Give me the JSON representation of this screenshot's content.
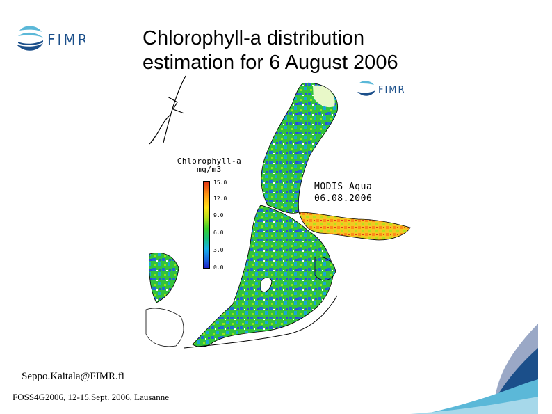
{
  "title": "Chlorophyll-a distribution\nestimation for  6 August 2006",
  "logo": {
    "text": "FIMR"
  },
  "map": {
    "logo_text": "FIMR",
    "legend": {
      "title": "Chlorophyll-a\nmg/m3",
      "ticks": [
        "15.0",
        "12.0",
        "9.0",
        "6.0",
        "3.0",
        "0.0"
      ],
      "colors": {
        "low": "#1f23c8",
        "mid": "#3ccf2a",
        "high": "#e23214",
        "land": "#ffffff",
        "coast": "#000000"
      }
    },
    "sensor": "MODIS Aqua\n06.08.2006"
  },
  "footer": {
    "email": "Seppo.Kaitala@FIMR.fi",
    "conference": "FOSS4G2006, 12-15.Sept. 2006, Lausanne"
  },
  "colors": {
    "brand_dark": "#1b4f8a",
    "brand_light": "#5bb8d8",
    "brand_grey": "#9aa8c6"
  }
}
